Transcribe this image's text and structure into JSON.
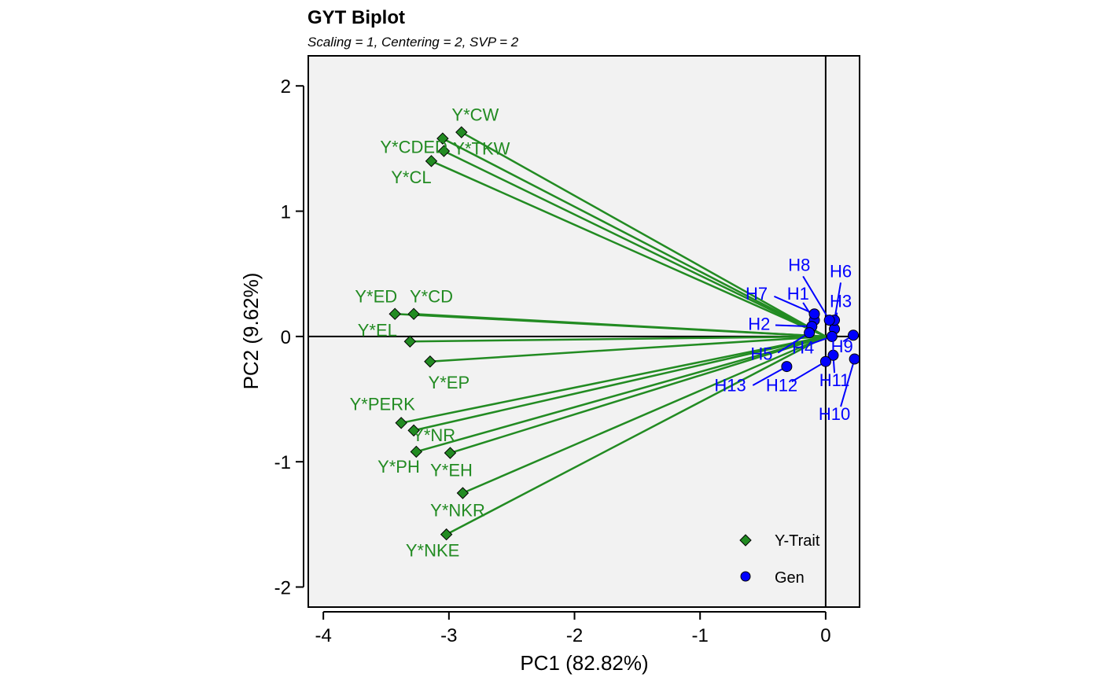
{
  "chart_data": {
    "type": "scatter",
    "title": "GYT Biplot",
    "subtitle": "Scaling = 1, Centering = 2, SVP = 2",
    "xlabel": "PC1 (82.82%)",
    "ylabel": "PC2 (9.62%)",
    "xlim": [
      -4.12,
      0.27
    ],
    "ylim": [
      -2.16,
      2.24
    ],
    "xticks": [
      -4,
      -3,
      -2,
      -1,
      0
    ],
    "yticks": [
      -2,
      -1,
      0,
      1,
      2
    ],
    "xtick_labels": [
      "-4",
      "-3",
      "-2",
      "-1",
      "0"
    ],
    "ytick_labels": [
      "-2",
      "-1",
      "0",
      "1",
      "2"
    ],
    "colors": {
      "trait": "#228B22",
      "gen": "#0000FF",
      "panel": "#F2F2F2",
      "frame": "#000000"
    },
    "series": [
      {
        "name": "Y-Trait",
        "marker": "diamond",
        "points": [
          {
            "label": "Y*CW",
            "x": -2.9,
            "y": 1.63
          },
          {
            "label": "Y*TKW",
            "x": -3.04,
            "y": 1.48
          },
          {
            "label": "Y*CDED",
            "x": -3.05,
            "y": 1.58
          },
          {
            "label": "Y*CL",
            "x": -3.14,
            "y": 1.4
          },
          {
            "label": "Y*ED",
            "x": -3.43,
            "y": 0.18
          },
          {
            "label": "Y*CD",
            "x": -3.28,
            "y": 0.18
          },
          {
            "label": "Y*EL",
            "x": -3.31,
            "y": -0.04
          },
          {
            "label": "Y*EP",
            "x": -3.15,
            "y": -0.2
          },
          {
            "label": "Y*PERK",
            "x": -3.38,
            "y": -0.69
          },
          {
            "label": "Y*NR",
            "x": -3.28,
            "y": -0.75
          },
          {
            "label": "Y*PH",
            "x": -3.26,
            "y": -0.92
          },
          {
            "label": "Y*EH",
            "x": -2.99,
            "y": -0.93
          },
          {
            "label": "Y*NKR",
            "x": -2.89,
            "y": -1.25
          },
          {
            "label": "Y*NKE",
            "x": -3.02,
            "y": -1.58
          }
        ]
      },
      {
        "name": "Gen",
        "marker": "circle",
        "points": [
          {
            "label": "H1",
            "x": -0.09,
            "y": 0.13
          },
          {
            "label": "H2",
            "x": -0.11,
            "y": 0.08
          },
          {
            "label": "H3",
            "x": 0.07,
            "y": 0.06
          },
          {
            "label": "H4",
            "x": 0.05,
            "y": 0.0
          },
          {
            "label": "H5",
            "x": -0.13,
            "y": 0.03
          },
          {
            "label": "H6",
            "x": 0.07,
            "y": 0.13
          },
          {
            "label": "H7",
            "x": -0.09,
            "y": 0.18
          },
          {
            "label": "H8",
            "x": 0.03,
            "y": 0.13
          },
          {
            "label": "H9",
            "x": 0.22,
            "y": 0.01
          },
          {
            "label": "H10",
            "x": 0.23,
            "y": -0.18
          },
          {
            "label": "H11",
            "x": 0.06,
            "y": -0.15
          },
          {
            "label": "H12",
            "x": 0.0,
            "y": -0.2
          },
          {
            "label": "H13",
            "x": -0.31,
            "y": -0.24
          }
        ]
      }
    ],
    "legend": {
      "position": "bottom-right",
      "entries": [
        {
          "label": "Y-Trait",
          "marker": "diamond",
          "color": "#228B22"
        },
        {
          "label": "Gen",
          "marker": "circle",
          "color": "#0000FF"
        }
      ]
    }
  },
  "label_positions": {
    "Y*CW": [
      -2.79,
      1.76
    ],
    "Y*TKW": [
      -2.74,
      1.49
    ],
    "Y*CDED": [
      -3.28,
      1.5
    ],
    "Y*CL": [
      -3.3,
      1.26
    ],
    "Y*ED": [
      -3.58,
      0.31
    ],
    "Y*CD": [
      -3.14,
      0.31
    ],
    "Y*EL": [
      -3.57,
      0.04
    ],
    "Y*EP": [
      -3.0,
      -0.38
    ],
    "Y*PERK": [
      -3.53,
      -0.55
    ],
    "Y*NR": [
      -3.12,
      -0.8
    ],
    "Y*PH": [
      -3.4,
      -1.05
    ],
    "Y*EH": [
      -2.98,
      -1.08
    ],
    "Y*NKR": [
      -2.93,
      -1.4
    ],
    "Y*NKE": [
      -3.13,
      -1.72
    ],
    "H1": [
      -0.22,
      0.33
    ],
    "H2": [
      -0.53,
      0.09
    ],
    "H3": [
      0.12,
      0.27
    ],
    "H4": [
      -0.18,
      -0.1
    ],
    "H5": [
      -0.51,
      -0.15
    ],
    "H6": [
      0.12,
      0.51
    ],
    "H7": [
      -0.55,
      0.33
    ],
    "H8": [
      -0.21,
      0.56
    ],
    "H9": [
      0.13,
      -0.09
    ],
    "H10": [
      0.07,
      -0.63
    ],
    "H11": [
      0.07,
      -0.36
    ],
    "H12": [
      -0.35,
      -0.4
    ],
    "H13": [
      -0.76,
      -0.4
    ]
  },
  "gen_leaders": {
    "H1": [
      -0.18,
      0.27
    ],
    "H2": [
      -0.4,
      0.09
    ],
    "H3": [
      0.09,
      0.19
    ],
    "H4": [
      -0.12,
      -0.06
    ],
    "H5": [
      -0.38,
      -0.13
    ],
    "H6": [
      0.12,
      0.43
    ],
    "H7": [
      -0.41,
      0.32
    ],
    "H8": [
      -0.18,
      0.48
    ],
    "H9": [
      0.14,
      -0.04
    ],
    "H10": [
      0.12,
      -0.56
    ],
    "H11": [
      0.07,
      -0.29
    ],
    "H12": [
      -0.27,
      -0.36
    ],
    "H13": [
      -0.58,
      -0.39
    ]
  }
}
